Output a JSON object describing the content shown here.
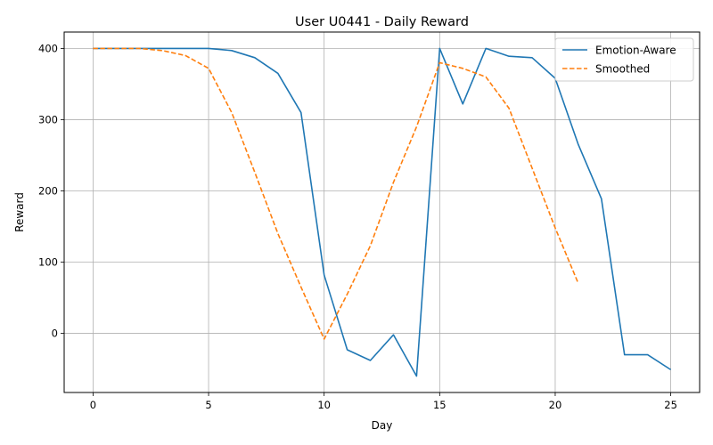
{
  "chart_data": {
    "type": "line",
    "title": "User U0441 - Daily Reward",
    "xlabel": "Day",
    "ylabel": "Reward",
    "xlim": [
      -1.25,
      26.25
    ],
    "ylim": [
      -83,
      423
    ],
    "xticks": [
      0,
      5,
      10,
      15,
      20,
      25
    ],
    "yticks": [
      0,
      100,
      200,
      300,
      400
    ],
    "grid": true,
    "legend_position": "top-right",
    "series": [
      {
        "name": "Emotion-Aware",
        "color": "#1f77b4",
        "style": "solid",
        "x": [
          0,
          1,
          2,
          3,
          4,
          5,
          6,
          7,
          8,
          9,
          10,
          11,
          12,
          13,
          14,
          15,
          16,
          17,
          18,
          19,
          20,
          21,
          22,
          23,
          24,
          25
        ],
        "y": [
          400,
          400,
          400,
          400,
          400,
          400,
          397,
          387,
          365,
          310,
          82,
          -23,
          -38,
          -2,
          -60,
          400,
          322,
          400,
          389,
          387,
          358,
          265,
          189,
          -30,
          -30,
          -51
        ]
      },
      {
        "name": "Smoothed",
        "color": "#ff7f0e",
        "style": "dashed",
        "x": [
          0,
          1,
          2,
          3,
          4,
          5,
          6,
          7,
          8,
          9,
          10,
          11,
          12,
          13,
          14,
          15,
          16,
          17,
          18,
          19,
          20,
          21
        ],
        "y": [
          400,
          400,
          400,
          397,
          390,
          372,
          310,
          226,
          140,
          65,
          -8,
          55,
          123,
          212,
          290,
          380,
          372,
          360,
          316,
          232,
          148,
          70
        ]
      }
    ]
  }
}
